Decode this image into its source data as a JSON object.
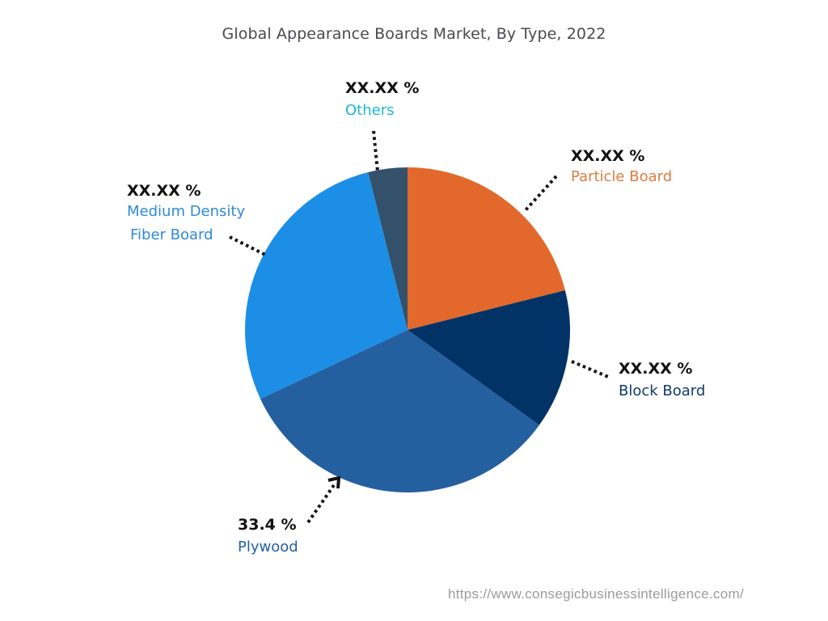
{
  "chart_data": {
    "type": "pie",
    "title": "Global Appearance Boards Market, By Type, 2022",
    "slices": [
      {
        "name": "Particle Board",
        "label": "XX.XX %",
        "value": null,
        "render_share": 21.1,
        "color": "#e2692b",
        "label_color": "#e07b3d"
      },
      {
        "name": "Block Board",
        "label": "XX.XX %",
        "value": null,
        "render_share": 13.9,
        "color": "#013366",
        "label_color": "#0e3a66"
      },
      {
        "name": "Plywood",
        "label": "33.4 %",
        "value": 33.4,
        "render_share": 33.1,
        "color": "#245fa0",
        "label_color": "#2360a0"
      },
      {
        "name": "Medium Density Fiber Board",
        "label": "XX.XX %",
        "value": null,
        "render_share": 28.1,
        "color": "#1d8ee5",
        "label_color": "#2f8ad8"
      },
      {
        "name": "Others",
        "label": "XX.XX %",
        "value": null,
        "render_share": 3.9,
        "color": "#34516b",
        "label_color": "#1cb5d6"
      }
    ],
    "start_angle_deg": 0,
    "direction": "clockwise",
    "legend": "none (callout labels)",
    "source_note": "https://www.consegicbusinessintelligence.com/"
  },
  "title": "Global Appearance Boards Market, By Type, 2022",
  "labels": {
    "others": {
      "pct": "XX.XX %",
      "name": "Others"
    },
    "particle": {
      "pct": "XX.XX %",
      "name": "Particle Board"
    },
    "mdf": {
      "pct": "XX.XX %",
      "name_line1": "Medium Density",
      "name_line2": "Fiber Board"
    },
    "block": {
      "pct": "XX.XX %",
      "name": "Block Board"
    },
    "plywood": {
      "pct": "33.4 %",
      "name": "Plywood"
    }
  },
  "source": "https://www.consegicbusinessintelligence.com/"
}
